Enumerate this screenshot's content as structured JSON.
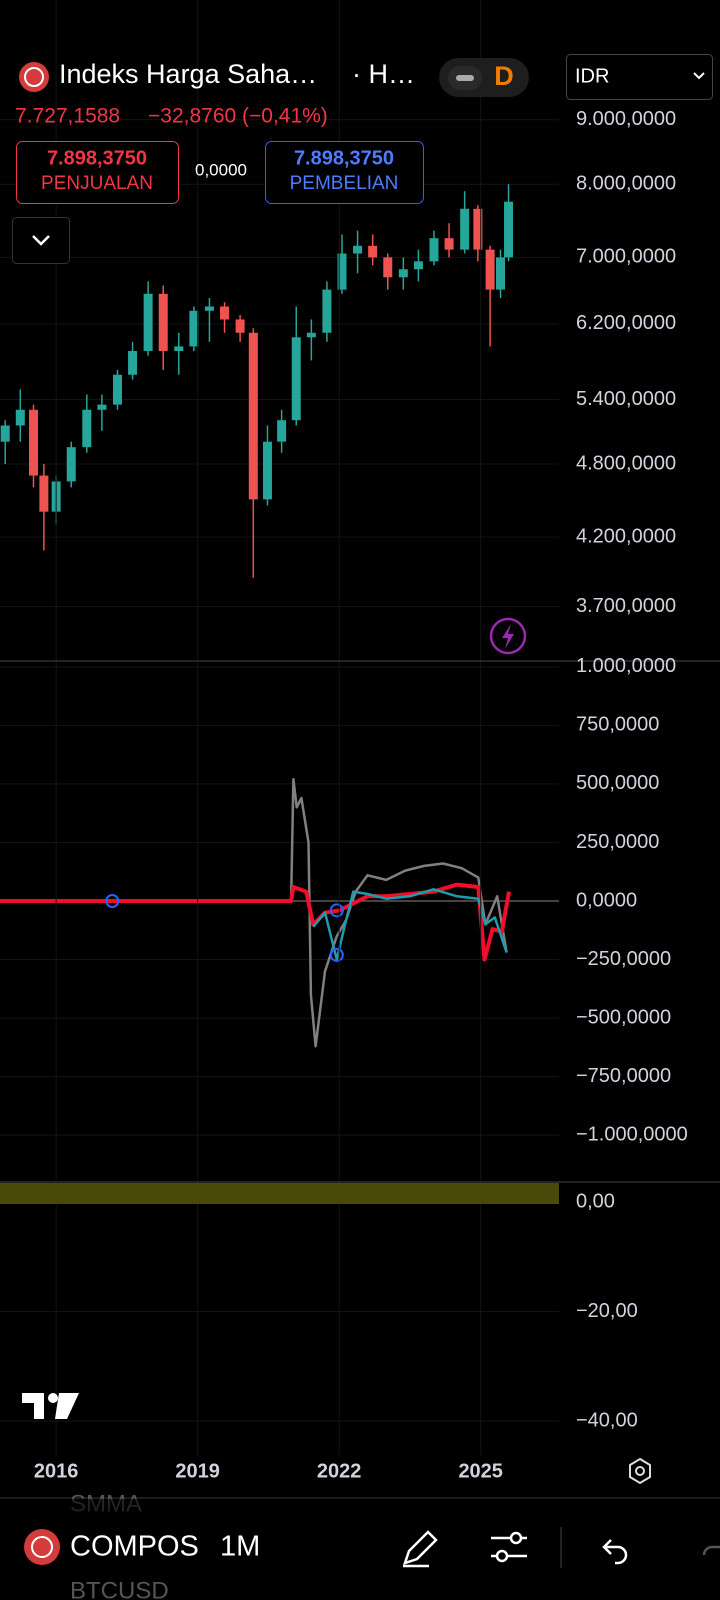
{
  "header": {
    "title": "Indeks Harga Saha…",
    "exchange": "· H…",
    "interval_badge": "D",
    "currency": "IDR",
    "price": "7.727,1588",
    "change": "−32,8760 (−0,41%)",
    "sell": {
      "price": "7.898,3750",
      "label": "PENJUALAN"
    },
    "spread": "0,0000",
    "buy": {
      "price": "7.898,3750",
      "label": "PEMBELIAN"
    }
  },
  "toolbar": {
    "above": "SMMA",
    "symbol": "COMPOS",
    "interval": "1M",
    "below": "BTCUSD"
  },
  "chart_data": [
    {
      "type": "candlestick",
      "log_scale": true,
      "ylim": [
        3350,
        11200
      ],
      "xlim": [
        2014.81,
        2026.66
      ],
      "yticks": [
        {
          "value": 9000,
          "label": "9.000,0000"
        },
        {
          "value": 8000,
          "label": "8.000,0000"
        },
        {
          "value": 7000,
          "label": "7.000,0000"
        },
        {
          "value": 6200,
          "label": "6.200,0000"
        },
        {
          "value": 5400,
          "label": "5.400,0000"
        },
        {
          "value": 4800,
          "label": "4.800,0000"
        },
        {
          "value": 4200,
          "label": "4.200,0000"
        },
        {
          "value": 3700,
          "label": "3.700,0000"
        }
      ],
      "up_color": "#26a69a",
      "down_color": "#ef5350",
      "grid": true,
      "x": [
        2014.92,
        2015.24,
        2015.52,
        2015.74,
        2016.0,
        2016.32,
        2016.65,
        2016.97,
        2017.3,
        2017.62,
        2017.95,
        2018.27,
        2018.6,
        2018.92,
        2019.25,
        2019.57,
        2019.9,
        2020.18,
        2020.48,
        2020.78,
        2021.09,
        2021.41,
        2021.74,
        2022.06,
        2022.39,
        2022.71,
        2023.03,
        2023.36,
        2023.68,
        2024.01,
        2024.33,
        2024.66,
        2024.94,
        2025.2,
        2025.42,
        2025.59
      ],
      "open": [
        5000,
        5150,
        5300,
        4700,
        4400,
        4650,
        4950,
        5300,
        5350,
        5650,
        5900,
        6550,
        5900,
        5950,
        6350,
        6400,
        6250,
        6100,
        4500,
        5000,
        5200,
        6050,
        6100,
        6600,
        7050,
        7150,
        7000,
        6750,
        6850,
        6950,
        7250,
        7100,
        7650,
        7100,
        6600,
        7000
      ],
      "high": [
        5200,
        5500,
        5350,
        4800,
        4700,
        5000,
        5450,
        5450,
        5700,
        6000,
        6700,
        6650,
        6100,
        6400,
        6500,
        6450,
        6300,
        6150,
        5150,
        5300,
        6400,
        6250,
        6700,
        7300,
        7350,
        7300,
        7050,
        7000,
        7100,
        7350,
        7450,
        7900,
        7700,
        7150,
        7100,
        8000
      ],
      "low": [
        4800,
        5000,
        4600,
        4100,
        4300,
        4600,
        4900,
        5100,
        5300,
        5600,
        5850,
        5700,
        5650,
        5900,
        6000,
        6100,
        6000,
        3900,
        4450,
        4900,
        5150,
        5800,
        6000,
        6550,
        6800,
        6900,
        6600,
        6600,
        6700,
        6900,
        7000,
        7050,
        6950,
        5950,
        6500,
        6950
      ],
      "close": [
        5150,
        5300,
        4700,
        4400,
        4650,
        4950,
        5300,
        5350,
        5650,
        5900,
        6550,
        5900,
        5950,
        6350,
        6400,
        6250,
        6100,
        4500,
        5000,
        5200,
        6050,
        6100,
        6600,
        7050,
        7150,
        7000,
        6750,
        6850,
        6950,
        7250,
        7100,
        7650,
        7100,
        6600,
        7000,
        7750
      ]
    },
    {
      "type": "line",
      "ylim": [
        -1200,
        1025
      ],
      "xlim": [
        2014.81,
        2026.66
      ],
      "grid": true,
      "yticks": [
        {
          "value": 1000,
          "label": "1.000,0000"
        },
        {
          "value": 750,
          "label": "750,0000"
        },
        {
          "value": 500,
          "label": "500,0000"
        },
        {
          "value": 250,
          "label": "250,0000"
        },
        {
          "value": 0,
          "label": "0,0000"
        },
        {
          "value": -250,
          "label": "−250,0000"
        },
        {
          "value": -500,
          "label": "−500,0000"
        },
        {
          "value": -750,
          "label": "−750,0000"
        },
        {
          "value": -1000,
          "label": "−1.000,0000"
        }
      ],
      "series": [
        {
          "color": "#808080",
          "x": [
            2014.81,
            2020.98,
            2021.03,
            2021.1,
            2021.2,
            2021.35,
            2021.4,
            2021.5,
            2021.7,
            2021.95,
            2022.15,
            2022.35,
            2022.6,
            2023.0,
            2023.4,
            2023.8,
            2024.2,
            2024.6,
            2024.95,
            2025.1,
            2025.35,
            2025.55
          ],
          "values": [
            0,
            0,
            520,
            400,
            440,
            250,
            -400,
            -620,
            -300,
            -150,
            -80,
            40,
            110,
            90,
            130,
            150,
            160,
            140,
            100,
            -100,
            20,
            -220
          ]
        },
        {
          "color": "#f20d2a",
          "x": [
            2014.81,
            2020.98,
            2021.03,
            2021.3,
            2021.45,
            2021.7,
            2022.0,
            2022.3,
            2022.6,
            2023.0,
            2023.5,
            2024.0,
            2024.5,
            2024.95,
            2025.08,
            2025.25,
            2025.45,
            2025.6
          ],
          "values": [
            0,
            0,
            60,
            40,
            -100,
            -50,
            -40,
            -10,
            20,
            20,
            30,
            40,
            70,
            60,
            -250,
            -120,
            -130,
            40
          ]
        },
        {
          "color": "#1e9bb0",
          "x": [
            2021.45,
            2021.7,
            2021.95,
            2022.1,
            2022.3,
            2022.6,
            2023.0,
            2023.5,
            2024.0,
            2024.5,
            2024.95,
            2025.1,
            2025.3,
            2025.55
          ],
          "values": [
            -110,
            -50,
            -250,
            -120,
            40,
            30,
            10,
            20,
            50,
            20,
            10,
            -100,
            -70,
            -220
          ]
        }
      ],
      "markers": {
        "color": "#2962ff",
        "x": [
          2017.19,
          2021.95,
          2021.95
        ],
        "values": [
          0,
          -40,
          -230
        ]
      }
    },
    {
      "type": "area",
      "ylim": [
        -46.2,
        3.7
      ],
      "xlim": [
        2014.81,
        2026.66
      ],
      "grid": true,
      "yticks": [
        {
          "value": 0,
          "label": "0,00"
        },
        {
          "value": -20,
          "label": "−20,00"
        },
        {
          "value": -40,
          "label": "−40,00"
        }
      ],
      "xticks": [
        2016,
        2019,
        2022,
        2025
      ]
    }
  ]
}
